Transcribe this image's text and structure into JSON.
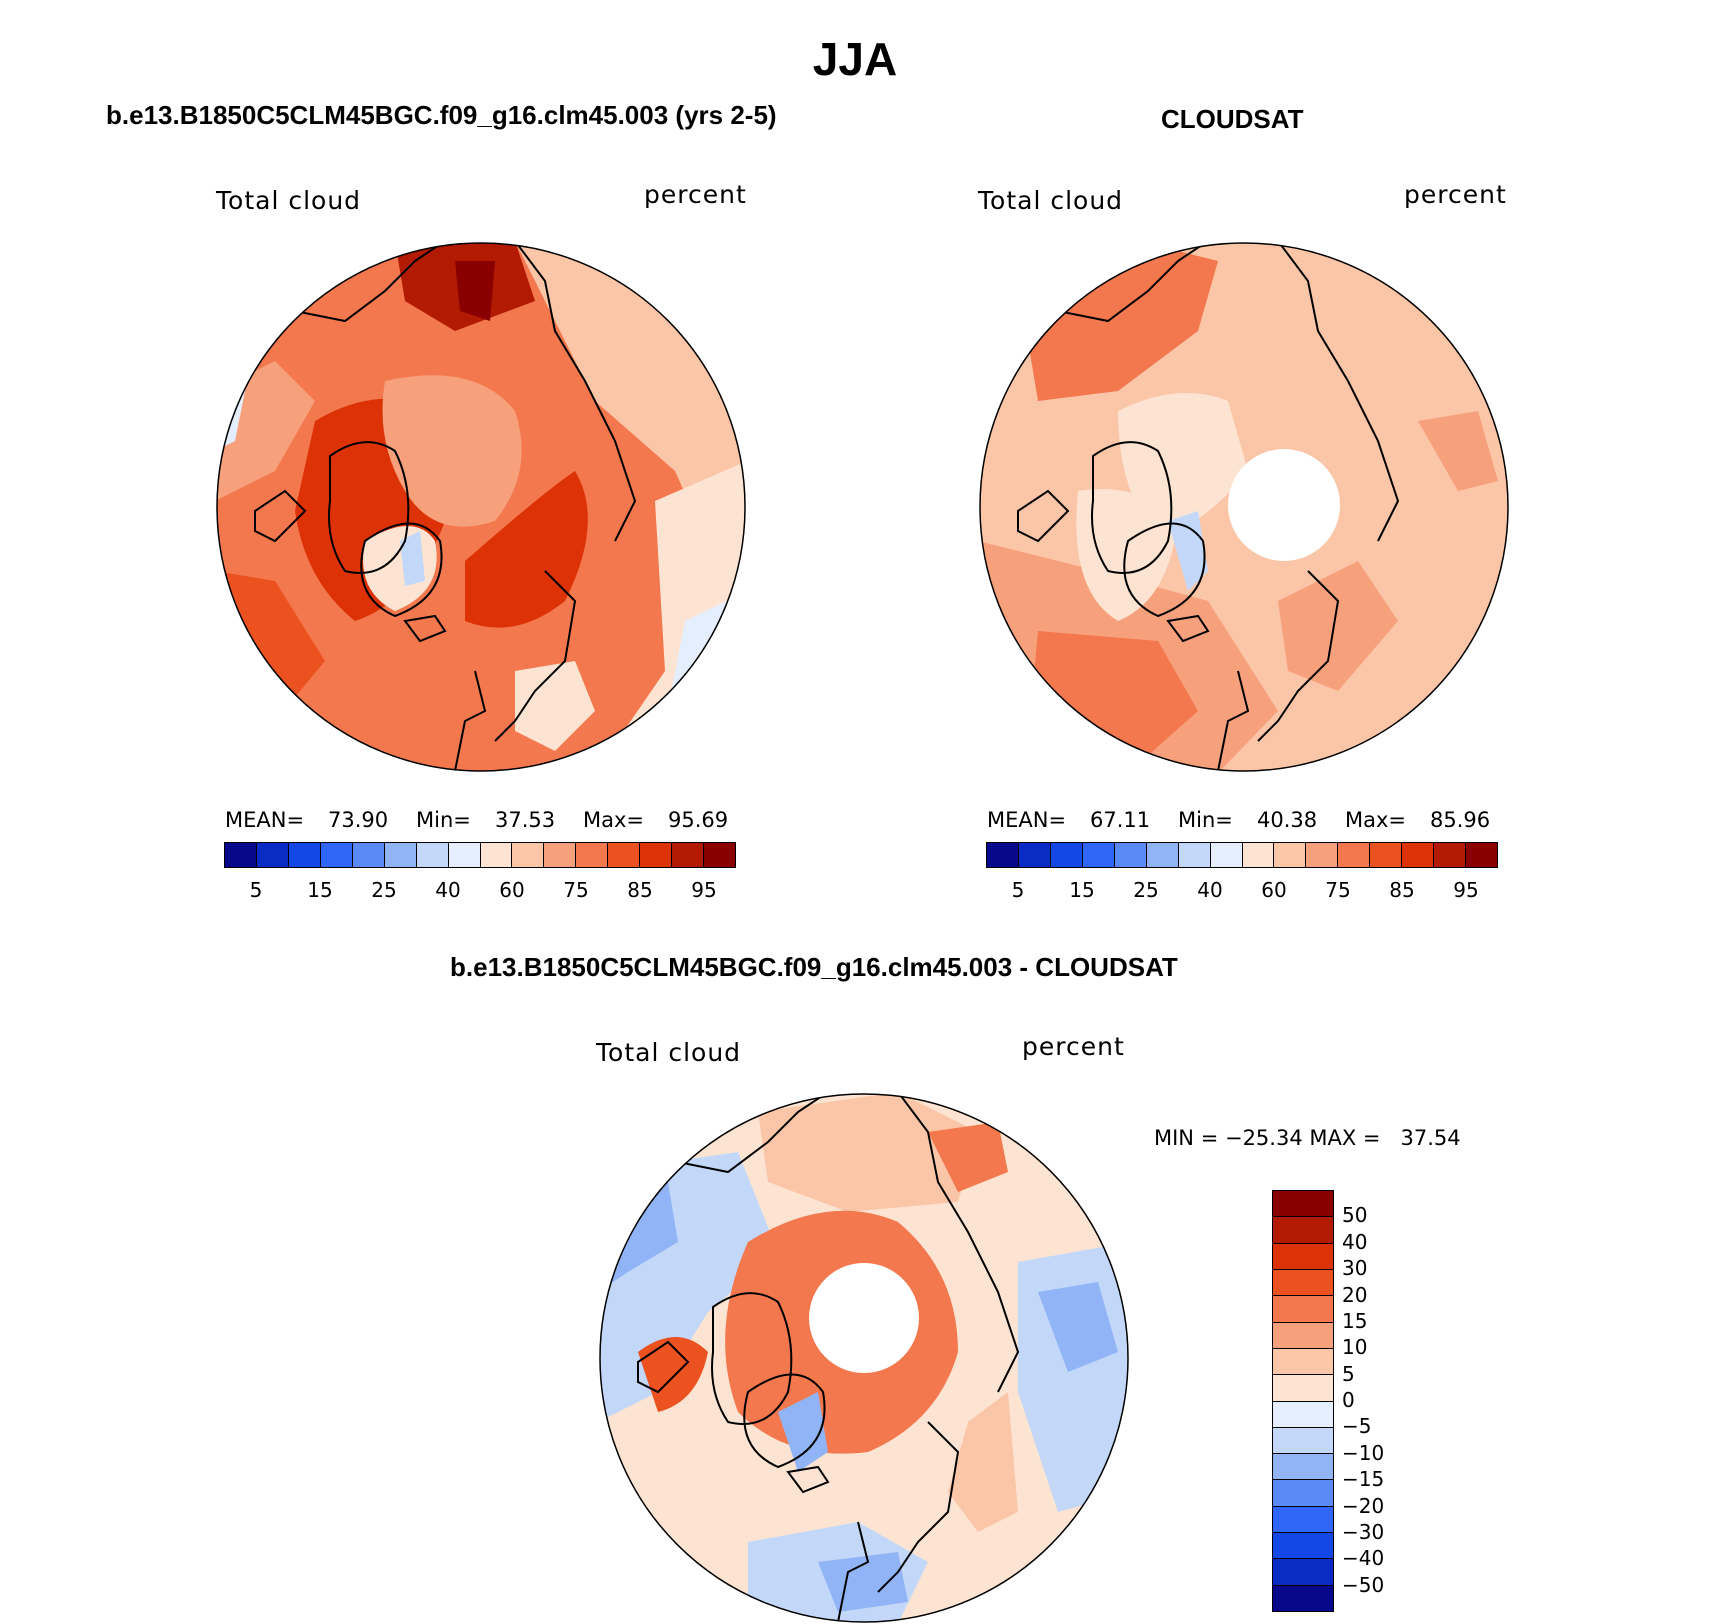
{
  "title": "JJA",
  "panels": [
    {
      "id": "model",
      "title": "b.e13.B1850C5CLM45BGC.f09_g16.clm45.003 (yrs 2-5)",
      "left_label": "Total cloud",
      "right_label": "percent",
      "stats": {
        "mean_label": "MEAN=",
        "mean": "73.90",
        "min_label": "Min=",
        "min": "37.53",
        "max_label": "Max=",
        "max": "95.69"
      },
      "mean_value": 73.9
    },
    {
      "id": "obs",
      "title": "CLOUDSAT",
      "left_label": "Total cloud",
      "right_label": "percent",
      "stats": {
        "mean_label": "MEAN=",
        "mean": "67.11",
        "min_label": "Min=",
        "min": "40.38",
        "max_label": "Max=",
        "max": "85.96"
      },
      "mean_value": 67.11
    },
    {
      "id": "diff",
      "title": "b.e13.B1850C5CLM45BGC.f09_g16.clm45.003 - CLOUDSAT",
      "left_label": "Total cloud",
      "right_label": "percent",
      "minmax_text": "MIN = −25.34 MAX =   37.54"
    }
  ],
  "colorbar_abs": {
    "colors": [
      "#08088a",
      "#0a2cc4",
      "#1347e6",
      "#2f66f5",
      "#5a8af5",
      "#90b4f5",
      "#c3d8f8",
      "#e4eefc",
      "#fde4d2",
      "#fbc6a8",
      "#f7a07c",
      "#f3784d",
      "#ec5220",
      "#dc3206",
      "#b31a02",
      "#8a0000"
    ],
    "ticks": [
      "5",
      "15",
      "25",
      "40",
      "60",
      "75",
      "85",
      "95"
    ]
  },
  "colorbar_diff": {
    "colors": [
      "#8a0000",
      "#b31a02",
      "#dc3206",
      "#ec5220",
      "#f3784d",
      "#f7a07c",
      "#fbc6a8",
      "#fde4d2",
      "#e4eefc",
      "#c3d8f8",
      "#90b4f5",
      "#5a8af5",
      "#2f66f5",
      "#1347e6",
      "#0a2cc4",
      "#08088a"
    ],
    "ticks": [
      "50",
      "40",
      "30",
      "20",
      "15",
      "10",
      "5",
      "0",
      "−5",
      "−10",
      "−15",
      "−20",
      "−30",
      "−40",
      "−50"
    ]
  }
}
